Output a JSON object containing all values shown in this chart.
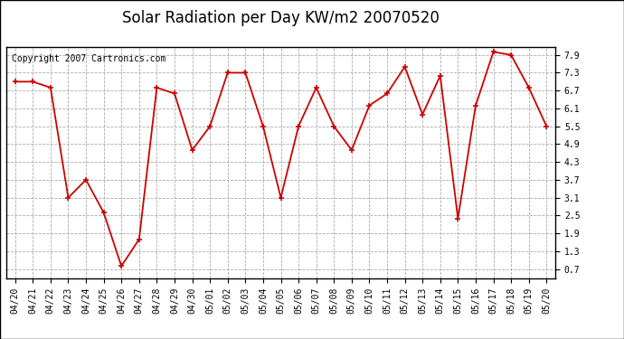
{
  "title": "Solar Radiation per Day KW/m2 20070520",
  "copyright": "Copyright 2007 Cartronics.com",
  "labels": [
    "04/20",
    "04/21",
    "04/22",
    "04/23",
    "04/24",
    "04/25",
    "04/26",
    "04/27",
    "04/28",
    "04/29",
    "04/30",
    "05/01",
    "05/02",
    "05/03",
    "05/04",
    "05/05",
    "05/06",
    "05/07",
    "05/08",
    "05/09",
    "05/10",
    "05/11",
    "05/12",
    "05/13",
    "05/14",
    "05/15",
    "05/16",
    "05/17",
    "05/18",
    "05/19",
    "05/20"
  ],
  "values": [
    7.0,
    7.0,
    6.8,
    3.1,
    3.7,
    2.6,
    0.8,
    1.7,
    6.8,
    6.6,
    4.7,
    5.5,
    7.3,
    7.3,
    5.5,
    3.1,
    5.5,
    6.8,
    5.5,
    4.7,
    6.2,
    6.6,
    7.5,
    5.9,
    7.2,
    2.4,
    6.2,
    8.0,
    7.9,
    6.8,
    5.5
  ],
  "line_color": "#cc0000",
  "marker": "+",
  "marker_size": 5,
  "marker_linewidth": 1.2,
  "bg_color": "#ffffff",
  "grid_color": "#aaaaaa",
  "yticks": [
    0.7,
    1.3,
    1.9,
    2.5,
    3.1,
    3.7,
    4.3,
    4.9,
    5.5,
    6.1,
    6.7,
    7.3,
    7.9
  ],
  "ylim": [
    0.4,
    8.15
  ],
  "title_fontsize": 12,
  "tick_fontsize": 7,
  "copyright_fontsize": 7,
  "line_width": 1.3
}
